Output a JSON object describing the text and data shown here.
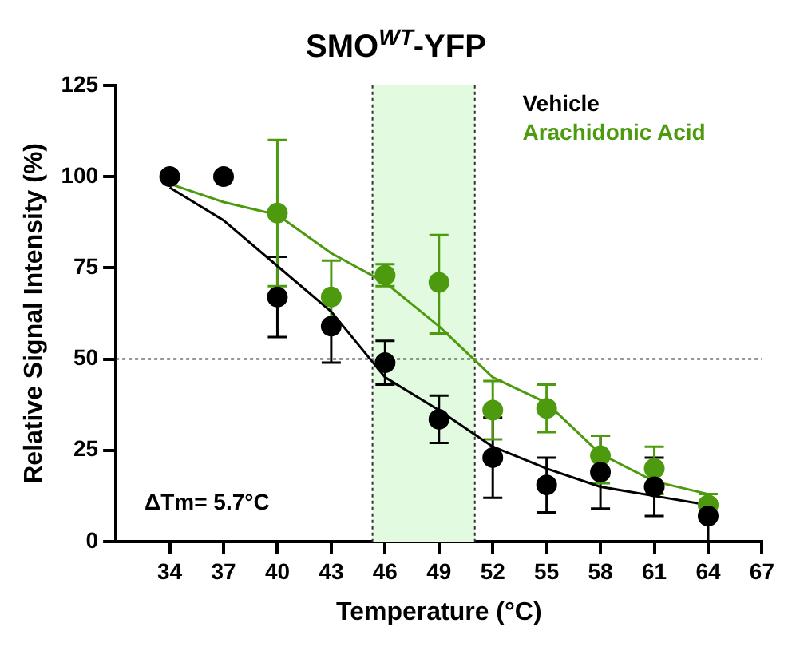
{
  "chart_data": {
    "type": "scatter",
    "title": "SMO$^{WT}$-YFP",
    "xlabel": "Temperature (°C)",
    "ylabel": "Relative Signal Intensity (%)",
    "xlim": [
      31,
      67
    ],
    "xticks": [
      34,
      37,
      40,
      43,
      46,
      49,
      52,
      55,
      58,
      61,
      64,
      67
    ],
    "ylim": [
      0,
      125
    ],
    "yticks": [
      0,
      25,
      50,
      75,
      100,
      125
    ],
    "grid": false,
    "legend": "top right",
    "marker": "circle",
    "series": [
      {
        "name": "Vehicle",
        "color": "#000000",
        "x": [
          34,
          37,
          40,
          43,
          46,
          49,
          52,
          55,
          58,
          61,
          64
        ],
        "values": [
          100,
          100,
          67,
          59,
          49,
          33.5,
          23,
          15.5,
          19,
          15,
          7
        ],
        "errors": [
          null,
          null,
          [
            56,
            78
          ],
          [
            49,
            59
          ],
          [
            43,
            55
          ],
          [
            27,
            40
          ],
          [
            12,
            34
          ],
          [
            8,
            23
          ],
          [
            9,
            29
          ],
          [
            7,
            23
          ],
          [
            0,
            11
          ]
        ]
      },
      {
        "name": "Arachidonic Acid",
        "color": "#4d9a0f",
        "x": [
          40,
          43,
          46,
          49,
          52,
          55,
          58,
          61,
          64
        ],
        "values": [
          90,
          67,
          73,
          71,
          36,
          36.5,
          23.5,
          20,
          10
        ],
        "errors": [
          [
            70,
            110
          ],
          [
            60,
            77
          ],
          [
            70,
            76
          ],
          [
            57,
            84
          ],
          [
            28,
            44
          ],
          [
            30,
            43
          ],
          [
            16,
            29
          ],
          [
            13,
            26
          ],
          [
            10,
            13
          ]
        ]
      },
      {
        "type": "line",
        "marker": "none",
        "color": "#000000",
        "x": [
          34,
          37,
          40,
          43,
          46,
          49,
          52,
          55,
          58,
          61,
          64
        ],
        "values": [
          97,
          88,
          75.5,
          63,
          45,
          36,
          26,
          20,
          15,
          12.5,
          10
        ]
      },
      {
        "type": "line",
        "marker": "none",
        "color": "#4d9a0f",
        "x": [
          34,
          37,
          40,
          43,
          46,
          49,
          52,
          55,
          58,
          61,
          64
        ],
        "values": [
          98,
          93,
          89.5,
          79,
          71,
          59,
          45,
          38,
          24,
          16.5,
          13
        ]
      }
    ],
    "bands": [
      {
        "axis": "x",
        "from": 45.3,
        "to": 51,
        "color": "#e2fae0"
      }
    ],
    "ref_lines": [
      {
        "axis": "y",
        "value": 50,
        "line_style": "dotted"
      },
      {
        "axis": "x",
        "value": 45.3,
        "line_style": "dotted"
      },
      {
        "axis": "x",
        "value": 51,
        "line_style": "dotted"
      }
    ],
    "annotations": [
      "ΔTm= 5.7°C"
    ]
  }
}
